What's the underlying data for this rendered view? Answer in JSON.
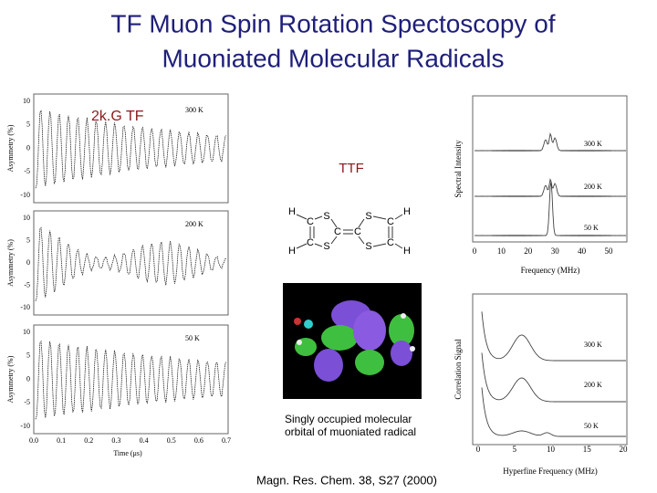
{
  "title": "TF Muon Spin Rotation Spectoscopy of Muoniated Molecular Radicals",
  "field_label": "2k.G TF",
  "molecule": {
    "label": "TTF",
    "atoms": [
      "H",
      "S",
      "S",
      "H",
      "C",
      "C",
      "C",
      "C",
      "C",
      "C",
      "H",
      "S",
      "S",
      "H"
    ]
  },
  "asymmetry_plot": {
    "y_label": "Asymmetry (%)",
    "x_label": "Time (μs)",
    "yticks": [
      "10",
      "5",
      "0",
      "-5",
      "-10"
    ],
    "xticks": [
      "0.0",
      "0.1",
      "0.2",
      "0.3",
      "0.4",
      "0.5",
      "0.6",
      "0.7"
    ],
    "temperatures": [
      "300 K",
      "200 K",
      "50 K"
    ]
  },
  "spectrum_plot": {
    "y_label": "Spectral Intensity",
    "x_label": "Frequency (MHz)",
    "xticks": [
      "0",
      "10",
      "20",
      "30",
      "40",
      "50"
    ],
    "temperatures": [
      "300 K",
      "200 K",
      "50 K"
    ]
  },
  "correlation_plot": {
    "y_label": "Correlation Signal",
    "x_label": "Hyperfine Frequency (MHz)",
    "xticks": [
      "0",
      "5",
      "10",
      "15",
      "20"
    ],
    "temperatures": [
      "300 K",
      "200 K",
      "50 K"
    ]
  },
  "orbital_caption": [
    "Singly occupied molecular",
    "orbital of muoniated radical"
  ],
  "reference": "Magn. Res. Chem. 38, S27 (2000)"
}
